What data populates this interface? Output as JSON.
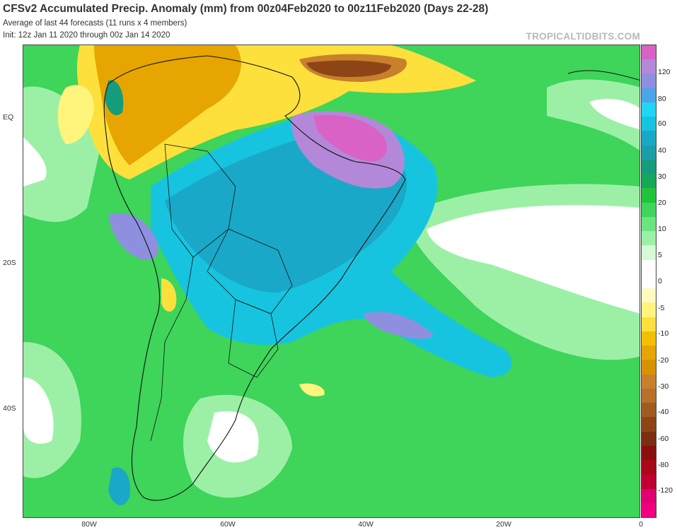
{
  "header": {
    "title": "CFSv2 Accumulated Precip. Anomaly (mm) from 00z04Feb2020 to 00z11Feb2020 (Days 22-28)",
    "subtitle1": "Average of last 44 forecasts (11 runs x 4 members)",
    "subtitle2": "Init: 12z Jan 11 2020 through 00z Jan 14 2020",
    "brand": "TROPICALTIDBITS.COM"
  },
  "axes": {
    "lat_labels": [
      "EQ",
      "20S",
      "40S"
    ],
    "lon_labels": [
      "80W",
      "60W",
      "40W",
      "20W",
      "0"
    ]
  },
  "colorbar": {
    "labels": [
      "120",
      "80",
      "60",
      "40",
      "30",
      "20",
      "10",
      "5",
      "0",
      "-5",
      "-10",
      "-20",
      "-30",
      "-40",
      "-60",
      "-80",
      "-120"
    ],
    "colors": [
      "#d962c7",
      "#b488d8",
      "#8f8fe0",
      "#4aa5ea",
      "#20d6f4",
      "#17c4e0",
      "#1aa8c8",
      "#1a9fa8",
      "#159c7c",
      "#13a85a",
      "#1ec43a",
      "#3fd45a",
      "#6ae47e",
      "#9cf0a6",
      "#d4fad6",
      "#ffffff",
      "#ffffff",
      "#fffac0",
      "#fff47c",
      "#fde03c",
      "#f2c000",
      "#e6a500",
      "#d89200",
      "#c8802c",
      "#b8702a",
      "#a05c20",
      "#8e4516",
      "#7a2e12",
      "#8a1010",
      "#a80818",
      "#c00030",
      "#e00070",
      "#f0007f"
    ]
  },
  "colors": {
    "land_fill": "#3fd45a",
    "border_line": "#111111",
    "brand": "#b8b8b8"
  }
}
